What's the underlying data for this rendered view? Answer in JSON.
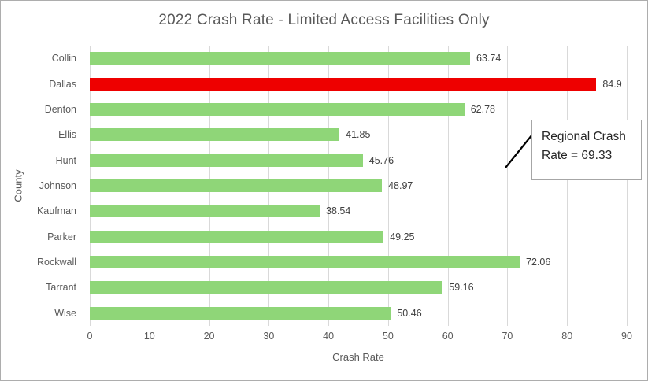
{
  "chart_data": {
    "type": "bar",
    "orientation": "horizontal",
    "title": "2022 Crash Rate - Limited Access Facilities Only",
    "xlabel": "Crash Rate",
    "ylabel": "County",
    "categories": [
      "Collin",
      "Dallas",
      "Denton",
      "Ellis",
      "Hunt",
      "Johnson",
      "Kaufman",
      "Parker",
      "Rockwall",
      "Tarrant",
      "Wise"
    ],
    "values": [
      63.74,
      84.9,
      62.78,
      41.85,
      45.76,
      48.97,
      38.54,
      49.25,
      72.06,
      59.16,
      50.46
    ],
    "value_labels": [
      "63.74",
      "84.9",
      "62.78",
      "41.85",
      "45.76",
      "48.97",
      "38.54",
      "49.25",
      "72.06",
      "59.16",
      "50.46"
    ],
    "xlim": [
      0,
      90
    ],
    "xticks": [
      0,
      10,
      20,
      30,
      40,
      50,
      60,
      70,
      80,
      90
    ],
    "grid": "vertical",
    "legend": "none",
    "highlight_category": "Dallas",
    "annotation": {
      "line1": "Regional Crash",
      "line2": "Rate = 69.33",
      "value": 69.33
    }
  },
  "colors": {
    "bar": "#8fd678",
    "bar_highlight": "#ee0000",
    "gridline": "#d9d9d9",
    "axis_text": "#595959",
    "value_text": "#404040",
    "title_text": "#595959",
    "callout_border": "#a6a6a6",
    "leader_line": "#000000",
    "canvas_border": "#adadad",
    "background": "#ffffff"
  }
}
